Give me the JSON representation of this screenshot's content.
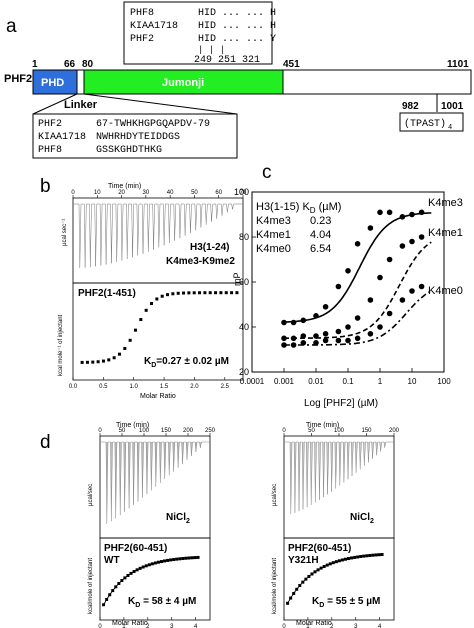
{
  "panels": {
    "a": "a",
    "b": "b",
    "c": "c",
    "d": "d"
  },
  "panel_a": {
    "protein": "PHF2",
    "domains": {
      "phd": "PHD",
      "jumonji": "Jumonji",
      "linker": "Linker"
    },
    "positions": {
      "p1": "1",
      "p66": "66",
      "p80": "80",
      "p451": "451",
      "p1101": "1101",
      "p982": "982",
      "p1001": "1001"
    },
    "tpast": "(TPAST)",
    "tpast_sub": "4",
    "top_box": {
      "rows": [
        {
          "name": "PHF8",
          "seq": "HID ... ... H"
        },
        {
          "name": "KIAA1718",
          "seq": "HID ... ... H"
        },
        {
          "name": "PHF2",
          "seq": "HID ... ... Y"
        }
      ],
      "ticks": "|   |        |",
      "nums": "249 251       321"
    },
    "bottom_box": {
      "rows": [
        {
          "name": "PHF2",
          "seq": "67-TWHKHGPGQAPDV-79"
        },
        {
          "name": "KIAA1718",
          "seq": "NWHRHDYTEIDDGS"
        },
        {
          "name": "PHF8",
          "seq": "GSSKGHDTHKG"
        }
      ]
    }
  },
  "panel_b": {
    "time_label": "Time (min)",
    "time_ticks": [
      "0",
      "10",
      "20",
      "30",
      "40",
      "50",
      "60",
      "70"
    ],
    "upper_ylabel": "µcal sec⁻¹",
    "lower_ylabel": "kcal mole⁻¹ of injectant",
    "xlabel": "Molar Ratio",
    "x_ticks": [
      "0.0",
      "0.5",
      "1.0",
      "1.5",
      "2.0",
      "2.5"
    ],
    "ligand": "H3(1-24)",
    "ligand_mod": "K4me3-K9me2",
    "protein": "PHF2(1-451)",
    "kd_prefix": "K",
    "kd_sub": "D",
    "kd_value": "=0.27 ± 0.02 µM"
  },
  "panel_c": {
    "legend_title": "H3(1-15) K",
    "legend_title_sub": "D",
    "legend_title_unit": " (µM)",
    "legend_rows": [
      {
        "name": "K4me3",
        "kd": "0.23"
      },
      {
        "name": "K4me1",
        "kd": "4.04"
      },
      {
        "name": "K4me0",
        "kd": "6.54"
      }
    ],
    "curve_labels": [
      "K4me3",
      "K4me1",
      "K4me0"
    ],
    "ylabel": "mP",
    "xlabel": "Log [PHF2] (µM)",
    "y_ticks": [
      "20",
      "40",
      "60",
      "80",
      "100"
    ],
    "x_ticks": [
      "0.0001",
      "0.001",
      "0.01",
      "0.1",
      "1",
      "10",
      "100"
    ]
  },
  "chart_data": {
    "type": "scatter",
    "xlabel": "Log [PHF2] (µM)",
    "ylabel": "mP",
    "xscale": "log",
    "xlim": [
      0.0001,
      100
    ],
    "ylim": [
      20,
      100
    ],
    "series": [
      {
        "name": "K4me3",
        "x": [
          0.001,
          0.002,
          0.004,
          0.01,
          0.02,
          0.05,
          0.1,
          0.2,
          0.5,
          1,
          2,
          5,
          10,
          20
        ],
        "y": [
          42,
          42,
          43,
          45,
          49,
          58,
          65,
          77,
          84,
          91,
          91,
          89,
          90,
          91
        ]
      },
      {
        "name": "K4me1",
        "x": [
          0.001,
          0.002,
          0.004,
          0.01,
          0.02,
          0.05,
          0.1,
          0.2,
          0.5,
          1,
          2,
          5,
          10,
          20
        ],
        "y": [
          35,
          35,
          36,
          36,
          37,
          38,
          40,
          44,
          52,
          62,
          70,
          76,
          78,
          80
        ]
      },
      {
        "name": "K4me0",
        "x": [
          0.001,
          0.002,
          0.004,
          0.01,
          0.02,
          0.05,
          0.1,
          0.2,
          0.5,
          1,
          2,
          5,
          10,
          20
        ],
        "y": [
          32,
          32,
          33,
          33,
          34,
          34,
          34,
          35,
          37,
          40,
          46,
          52,
          56,
          58
        ]
      }
    ],
    "fit_kd": [
      0.23,
      4.04,
      6.54
    ],
    "fit_bottom": [
      42,
      35,
      32
    ],
    "fit_top": [
      91,
      82,
      60
    ]
  },
  "panel_d": {
    "left": {
      "time_label": "Time (min)",
      "time_ticks": [
        "0",
        "50",
        "100",
        "150",
        "200",
        "250"
      ],
      "upper_ylabel": "µcal/sec",
      "lower_ylabel": "kcal/mole of injectant",
      "xlabel": "Molar Ratio",
      "x_ticks": [
        "0",
        "1",
        "2",
        "3",
        "4"
      ],
      "salt": "NiCl",
      "salt_sub": "2",
      "protein": "PHF2(60-451)",
      "variant": "WT",
      "kd_prefix": "K",
      "kd_sub": "D",
      "kd_value": " = 58 ± 4 µM"
    },
    "right": {
      "time_label": "Time (min)",
      "time_ticks": [
        "0",
        "50",
        "100",
        "150",
        "200"
      ],
      "upper_ylabel": "µcal/sec",
      "lower_ylabel": "kcal/mole of injectant",
      "xlabel": "Molar Ratio",
      "x_ticks": [
        "0",
        "1",
        "2",
        "3",
        "4"
      ],
      "salt": "NiCl",
      "salt_sub": "2",
      "protein": "PHF2(60-451)",
      "variant": "Y321H",
      "kd_prefix": "K",
      "kd_sub": "D",
      "kd_value": " = 55 ± 5 µM"
    }
  }
}
